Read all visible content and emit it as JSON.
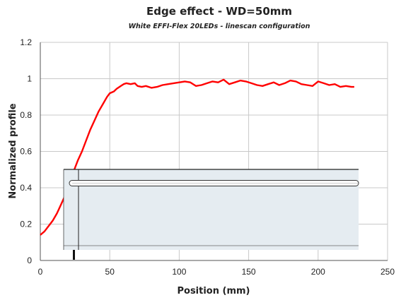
{
  "chart_data": {
    "type": "line",
    "title": "Edge effect - WD=50mm",
    "subtitle": "White EFFI-Flex 20LEDs - linescan configuration",
    "xlabel": "Position (mm)",
    "ylabel": "Normalized profile",
    "xlim": [
      0,
      250
    ],
    "ylim": [
      0,
      1.2
    ],
    "x_ticks": [
      0,
      50,
      100,
      150,
      200,
      250
    ],
    "y_ticks": [
      0,
      0.2,
      0.4,
      0.6,
      0.8,
      1,
      1.2
    ],
    "x_tick_labels": [
      "0",
      "50",
      "100",
      "150",
      "200",
      "250"
    ],
    "y_tick_labels": [
      "0",
      "0.2",
      "0.4",
      "0.6",
      "0.8",
      "1",
      "1.2"
    ],
    "grid": true,
    "legend": "none",
    "series": [
      {
        "color": "#ff0000",
        "x": [
          0,
          3,
          6,
          9,
          12,
          15,
          18,
          21,
          24,
          27,
          30,
          33,
          36,
          39,
          42,
          45,
          48,
          50,
          53,
          55,
          58,
          60,
          62,
          65,
          68,
          70,
          73,
          76,
          80,
          84,
          88,
          92,
          96,
          100,
          104,
          108,
          112,
          116,
          120,
          124,
          128,
          132,
          136,
          140,
          144,
          148,
          152,
          156,
          160,
          164,
          168,
          172,
          176,
          180,
          184,
          188,
          192,
          196,
          200,
          204,
          208,
          212,
          216,
          220,
          224,
          226
        ],
        "y": [
          0.14,
          0.16,
          0.19,
          0.22,
          0.26,
          0.31,
          0.36,
          0.42,
          0.49,
          0.55,
          0.6,
          0.66,
          0.72,
          0.77,
          0.82,
          0.86,
          0.9,
          0.92,
          0.93,
          0.945,
          0.96,
          0.97,
          0.975,
          0.97,
          0.975,
          0.96,
          0.955,
          0.96,
          0.95,
          0.955,
          0.965,
          0.97,
          0.975,
          0.98,
          0.985,
          0.98,
          0.96,
          0.965,
          0.975,
          0.985,
          0.98,
          0.995,
          0.97,
          0.98,
          0.99,
          0.985,
          0.975,
          0.965,
          0.96,
          0.97,
          0.98,
          0.965,
          0.975,
          0.99,
          0.985,
          0.97,
          0.965,
          0.96,
          0.985,
          0.975,
          0.965,
          0.97,
          0.955,
          0.96,
          0.955,
          0.955
        ]
      }
    ]
  },
  "overlay": {
    "panel_fill": "#e5ecf1",
    "panel_stroke": "#222222"
  }
}
